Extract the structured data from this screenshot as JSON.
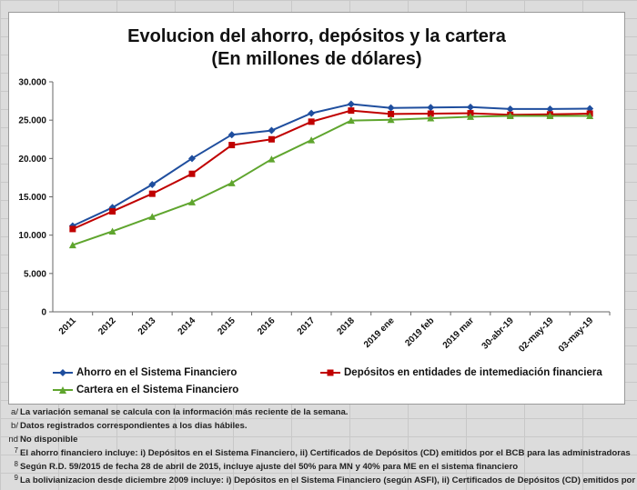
{
  "chart_data": {
    "type": "line",
    "title": "Evolucion del ahorro, depósitos y la cartera",
    "subtitle": "(En millones de dólares)",
    "xlabel": "",
    "ylabel": "",
    "ylim": [
      0,
      30000
    ],
    "yticks": [
      0,
      5000,
      10000,
      15000,
      20000,
      25000,
      30000
    ],
    "ytick_labels": [
      "0",
      "5.000",
      "10.000",
      "15.000",
      "20.000",
      "25.000",
      "30.000"
    ],
    "grid": false,
    "legend_position": "bottom",
    "categories": [
      "2011",
      "2012",
      "2013",
      "2014",
      "2015",
      "2016",
      "2017",
      "2018",
      "2019 ene",
      "2019 feb",
      "2019 mar",
      "30-abr-19",
      "02-may-19",
      "03-may-19"
    ],
    "series": [
      {
        "name": "Ahorro en el Sistema Financiero",
        "color": "#1f4e9e",
        "marker": "diamond",
        "values": [
          11200,
          13600,
          16600,
          20000,
          23100,
          23650,
          25900,
          27100,
          26600,
          26650,
          26700,
          26450,
          26450,
          26500
        ]
      },
      {
        "name": "Depósitos en entidades de intemediación financiera",
        "color": "#c00000",
        "marker": "square",
        "values": [
          10800,
          13100,
          15400,
          18000,
          21750,
          22500,
          24800,
          26250,
          25800,
          25850,
          25900,
          25700,
          25750,
          25850
        ]
      },
      {
        "name": "Cartera en el Sistema Financiero",
        "color": "#5fa52e",
        "marker": "triangle",
        "values": [
          8700,
          10500,
          12400,
          14300,
          16800,
          19900,
          22400,
          24950,
          25050,
          25250,
          25450,
          25550,
          25550,
          25550
        ]
      }
    ]
  },
  "notes": [
    {
      "mark": "a/",
      "text": "La variación semanal se calcula con la información más reciente de la semana."
    },
    {
      "mark": "b/",
      "text": "Datos registrados correspondientes a los dias hábiles."
    },
    {
      "mark": "nd",
      "text": "No disponible"
    },
    {
      "mark": "7",
      "text": "El ahorro financiero incluye: i) Depósitos en el Sistema Financiero, ii) Certificados de Depósitos (CD) emitidos por el BCB para las administradoras"
    },
    {
      "mark": "8",
      "text": "Según R.D. 59/2015 de fecha 28 de abril de 2015, incluye ajuste del  50% para MN y 40% para ME en el sistema financiero"
    },
    {
      "mark": "9",
      "text": "La bolivianizacion desde diciembre 2009 incluye: i) Depósitos en el Sistema Financiero (según ASFI), ii) Certificados de Depósitos (CD) emitidos por"
    }
  ]
}
